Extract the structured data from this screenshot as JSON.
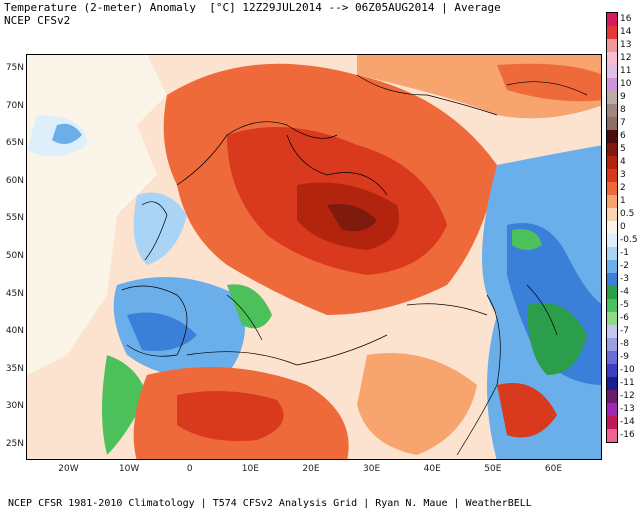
{
  "header": {
    "title_line1": "Temperature (2-meter) Anomaly  [°C] 12Z29JUL2014 --> 06Z05AUG2014 | Average",
    "title_line2": "NCEP CFSv2"
  },
  "footer": {
    "credit": "NCEP CFSR 1981-2010 Climatology | T574 CFSv2 Analysis Grid | Ryan N. Maue | WeatherBELL"
  },
  "map": {
    "lat_labels": [
      "75N",
      "70N",
      "65N",
      "60N",
      "55N",
      "50N",
      "45N",
      "40N",
      "35N",
      "30N",
      "25N"
    ],
    "lon_labels": [
      "20W",
      "10W",
      "0",
      "10E",
      "20E",
      "30E",
      "40E",
      "50E",
      "60E"
    ],
    "lat_range": [
      23,
      77
    ],
    "lon_range": [
      -27,
      68
    ]
  },
  "colorbar": {
    "labels": [
      "16",
      "14",
      "13",
      "12",
      "11",
      "10",
      "9",
      "8",
      "7",
      "6",
      "5",
      "4",
      "3",
      "2",
      "1",
      "0.5",
      "0",
      "-0.5",
      "-1",
      "-2",
      "-3",
      "-4",
      "-5",
      "-6",
      "-7",
      "-8",
      "-9",
      "-10",
      "-11",
      "-12",
      "-13",
      "-14",
      "-16"
    ],
    "colors": [
      "#d81b60",
      "#e53935",
      "#ef9a9a",
      "#f8bbd0",
      "#e1bee7",
      "#ce93d8",
      "#bcaaa4",
      "#a1887f",
      "#8d6e63",
      "#4a0d0d",
      "#7f1a0f",
      "#b3240f",
      "#d9391c",
      "#ef6a3a",
      "#f8a46e",
      "#fcd3b0",
      "#fbf4e8",
      "#dceffa",
      "#a9d4f5",
      "#6aaeea",
      "#3a7fd8",
      "#2a9e4a",
      "#4cc05a",
      "#8fd987",
      "#c4c8ee",
      "#9a9fdd",
      "#6a6ed0",
      "#3c3fc0",
      "#1a1f8c",
      "#6a1b6a",
      "#9c27b0",
      "#c2185b",
      "#f06292"
    ]
  }
}
